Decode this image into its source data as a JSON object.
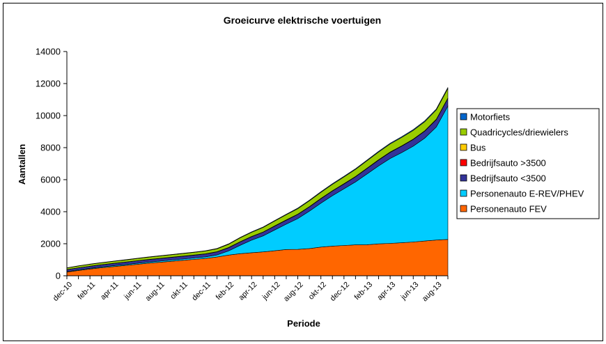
{
  "chart_data": {
    "type": "area",
    "stacked": true,
    "title": "Groeicurve elektrische voertuigen",
    "xlabel": "Periode",
    "ylabel": "Aantallen",
    "ylim": [
      0,
      14000
    ],
    "yticks": [
      "0",
      "2000",
      "4000",
      "6000",
      "8000",
      "10000",
      "12000",
      "14000"
    ],
    "x": [
      "dec-10",
      "jan-11",
      "feb-11",
      "mrt-11",
      "apr-11",
      "mei-11",
      "jun-11",
      "jul-11",
      "aug-11",
      "sep-11",
      "okt-11",
      "nov-11",
      "dec-11",
      "jan-12",
      "feb-12",
      "mrt-12",
      "apr-12",
      "mei-12",
      "jun-12",
      "jul-12",
      "aug-12",
      "sep-12",
      "okt-12",
      "nov-12",
      "dec-12",
      "jan-13",
      "feb-13",
      "mrt-13",
      "apr-13",
      "mei-13",
      "jun-13",
      "jul-13",
      "aug-13",
      "sep-13"
    ],
    "xtick_labels": [
      "dec-10",
      "feb-11",
      "apr-11",
      "jun-11",
      "aug-11",
      "okt-11",
      "dec-11",
      "feb-12",
      "apr-12",
      "jun-12",
      "aug-12",
      "okt-12",
      "dec-12",
      "feb-13",
      "apr-13",
      "jun-13",
      "aug-13"
    ],
    "legend_position": "right",
    "series": [
      {
        "name": "Personenauto FEV",
        "color": "#FF6600",
        "values": [
          230,
          330,
          420,
          500,
          570,
          640,
          710,
          780,
          840,
          900,
          960,
          1020,
          1080,
          1170,
          1290,
          1380,
          1440,
          1490,
          1560,
          1640,
          1650,
          1700,
          1790,
          1850,
          1890,
          1930,
          1940,
          1990,
          2020,
          2060,
          2110,
          2170,
          2230,
          2270
        ]
      },
      {
        "name": "Personenauto E-REV/PHEV",
        "color": "#00CCFF",
        "values": [
          30,
          40,
          45,
          50,
          55,
          60,
          65,
          70,
          75,
          80,
          85,
          90,
          100,
          130,
          260,
          520,
          780,
          1000,
          1300,
          1580,
          1920,
          2330,
          2740,
          3150,
          3540,
          3930,
          4420,
          4870,
          5300,
          5630,
          5980,
          6420,
          7060,
          8320
        ]
      },
      {
        "name": "Bedrijfsauto <3500",
        "color": "#333399",
        "values": [
          120,
          125,
          130,
          135,
          140,
          145,
          150,
          155,
          160,
          165,
          170,
          175,
          180,
          190,
          200,
          210,
          220,
          230,
          240,
          250,
          260,
          270,
          280,
          290,
          300,
          320,
          340,
          360,
          380,
          400,
          420,
          440,
          460,
          480
        ]
      },
      {
        "name": "Bedrijfsauto >3500",
        "color": "#FF0000",
        "values": [
          2,
          2,
          2,
          2,
          3,
          3,
          3,
          3,
          3,
          3,
          4,
          4,
          4,
          4,
          5,
          5,
          5,
          5,
          6,
          6,
          6,
          6,
          7,
          7,
          7,
          8,
          8,
          8,
          9,
          9,
          9,
          10,
          10,
          10
        ]
      },
      {
        "name": "Bus",
        "color": "#FFCC00",
        "values": [
          5,
          5,
          5,
          6,
          6,
          6,
          7,
          7,
          7,
          8,
          8,
          8,
          9,
          9,
          10,
          10,
          10,
          11,
          11,
          11,
          12,
          12,
          12,
          13,
          13,
          14,
          14,
          15,
          15,
          15,
          16,
          16,
          17,
          17
        ]
      },
      {
        "name": "Quadricycles/driewielers",
        "color": "#99CC00",
        "values": [
          100,
          110,
          115,
          120,
          125,
          130,
          135,
          140,
          145,
          150,
          155,
          160,
          170,
          180,
          200,
          240,
          260,
          280,
          300,
          320,
          340,
          360,
          380,
          400,
          420,
          440,
          460,
          480,
          500,
          520,
          540,
          560,
          580,
          600
        ]
      },
      {
        "name": "Motorfiets",
        "color": "#0066CC",
        "values": [
          10,
          11,
          12,
          13,
          14,
          15,
          16,
          17,
          18,
          19,
          20,
          21,
          22,
          23,
          25,
          27,
          29,
          31,
          33,
          35,
          37,
          39,
          41,
          43,
          45,
          47,
          49,
          51,
          53,
          55,
          57,
          59,
          61,
          63
        ]
      }
    ]
  }
}
